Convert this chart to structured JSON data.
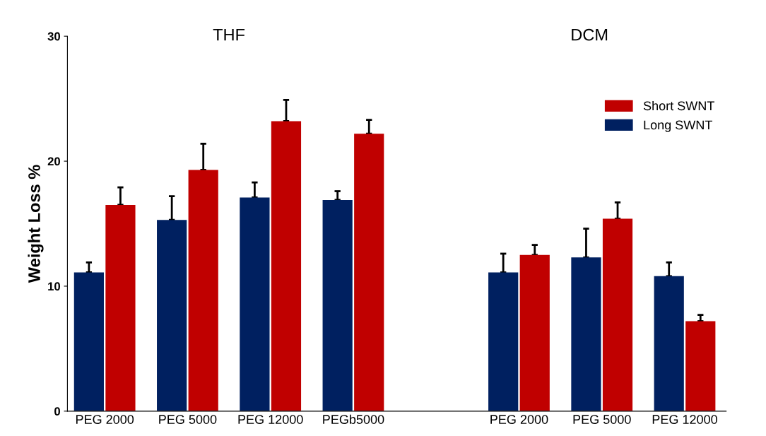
{
  "chart_data": {
    "type": "bar",
    "ylabel": "Weight Loss %",
    "categories": [
      "PEG 2000",
      "PEG 5000",
      "PEG 12000",
      "PEGb5000",
      null,
      "PEG 2000",
      "PEG 5000",
      "PEG 12000"
    ],
    "series": [
      {
        "name": "Long SWNT",
        "color": "#002060",
        "values": [
          11.1,
          15.3,
          17.1,
          16.9,
          null,
          11.1,
          12.3,
          10.8
        ],
        "errors": [
          [
            11.1,
            11.9
          ],
          [
            15.3,
            17.2
          ],
          [
            17.1,
            18.3
          ],
          [
            16.9,
            17.6
          ],
          null,
          [
            11.1,
            12.6
          ],
          [
            12.3,
            14.6
          ],
          [
            10.8,
            11.9
          ]
        ]
      },
      {
        "name": "Short SWNT",
        "color": "#c00000",
        "values": [
          16.5,
          19.3,
          23.2,
          22.2,
          null,
          12.5,
          15.4,
          7.2
        ],
        "errors": [
          [
            16.5,
            17.9
          ],
          [
            19.3,
            21.4
          ],
          [
            23.2,
            24.9
          ],
          [
            22.2,
            23.3
          ],
          null,
          [
            12.5,
            13.3
          ],
          [
            15.4,
            16.7
          ],
          [
            7.2,
            7.7
          ]
        ]
      }
    ],
    "annotations": [
      "THF",
      "DCM"
    ],
    "ylim": [
      0,
      30
    ],
    "yticks": [
      0,
      10,
      20,
      30
    ],
    "grid": false,
    "legend": "top right"
  }
}
